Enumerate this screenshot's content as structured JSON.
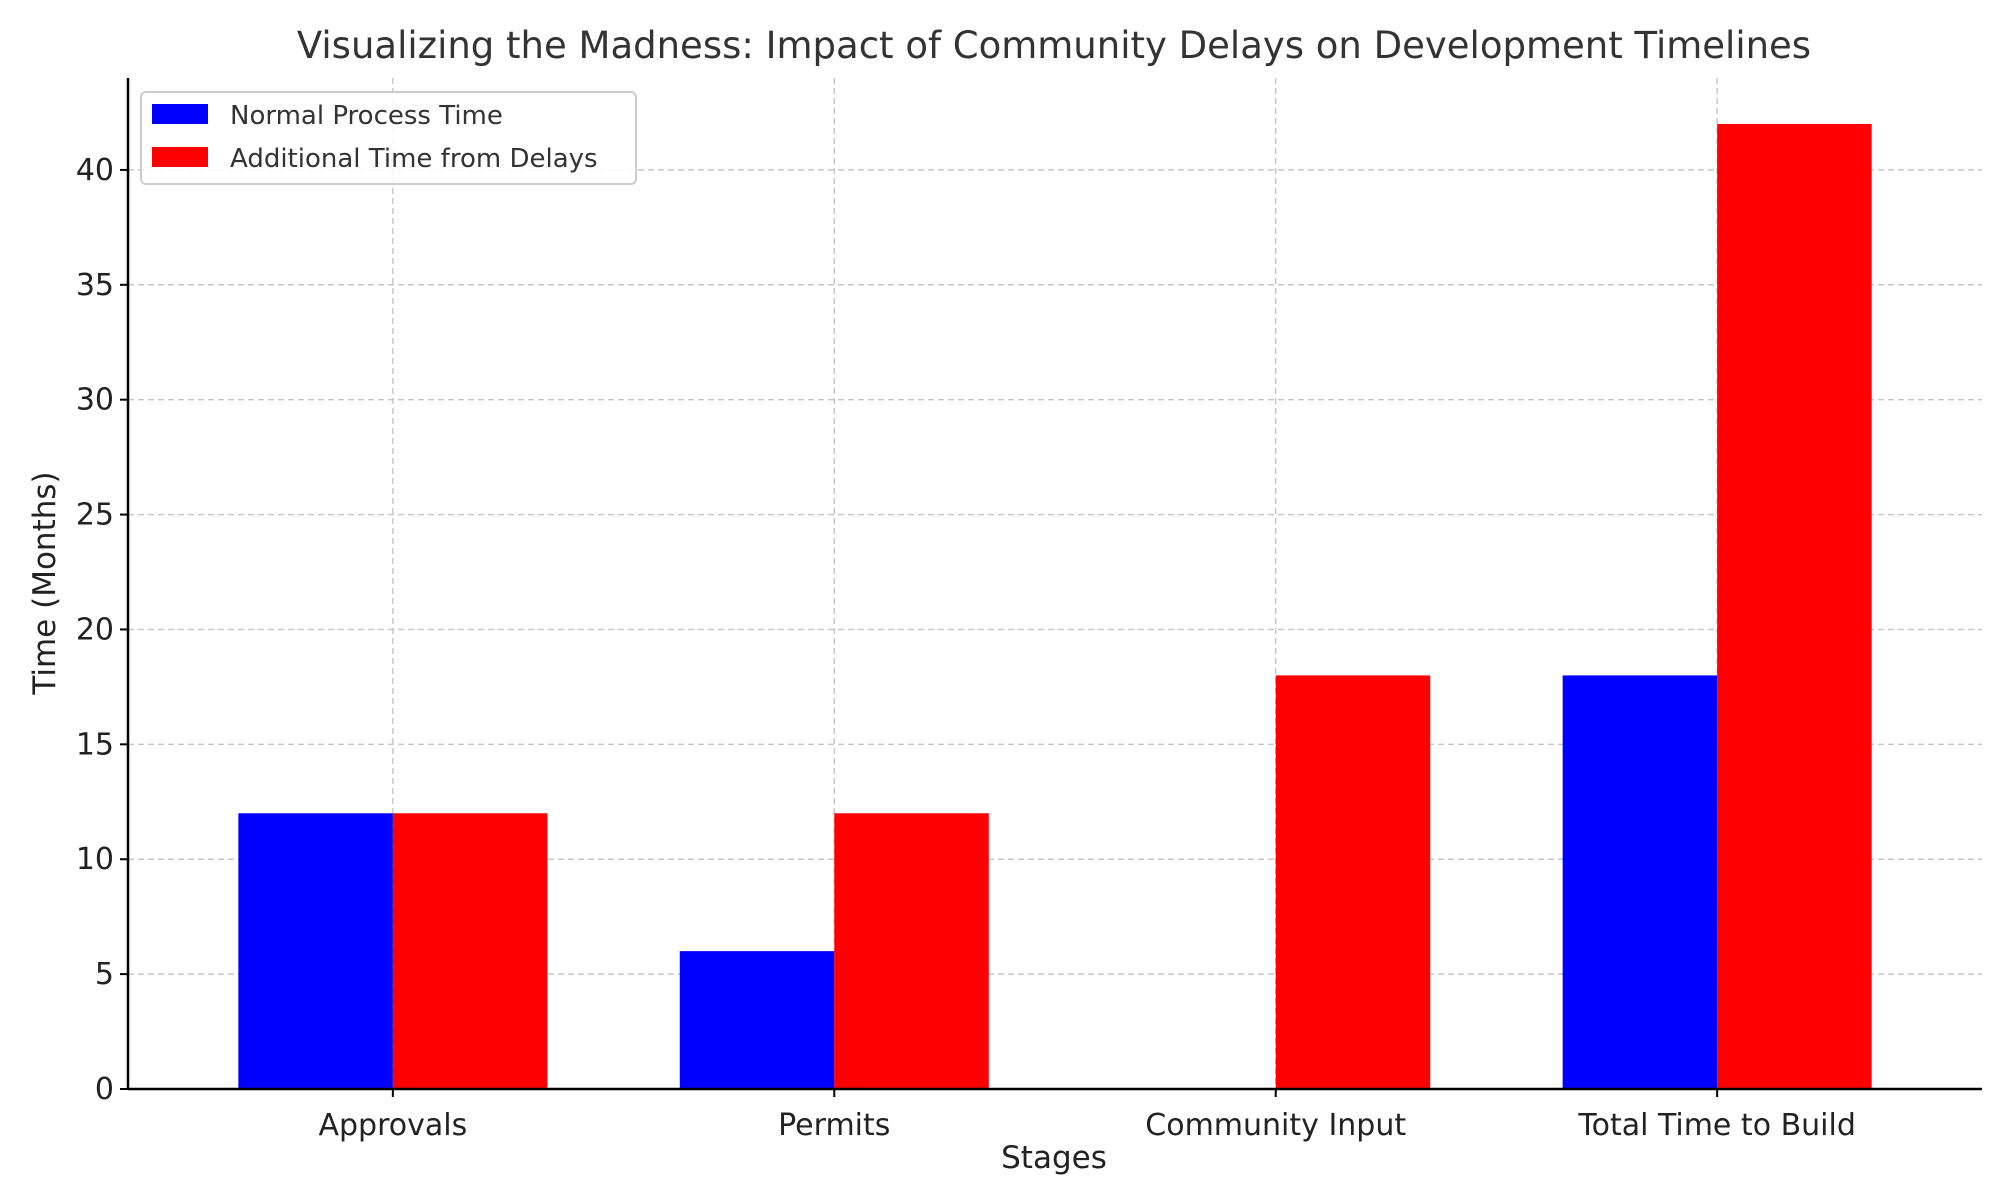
{
  "chart_data": {
    "type": "bar",
    "title": "Visualizing the Madness: Impact of Community Delays on Development Timelines",
    "xlabel": "Stages",
    "ylabel": "Time (Months)",
    "categories": [
      "Approvals",
      "Permits",
      "Community Input",
      "Total Time to Build"
    ],
    "series": [
      {
        "name": "Normal Process Time",
        "color": "#0000ff",
        "values": [
          12,
          6,
          0,
          18
        ]
      },
      {
        "name": "Additional Time from Delays",
        "color": "#ff0000",
        "values": [
          12,
          12,
          18,
          42
        ]
      }
    ],
    "ylim": [
      0,
      44
    ],
    "yticks": [
      0,
      5,
      10,
      15,
      20,
      25,
      30,
      35,
      40
    ],
    "grid": true,
    "legend_position": "top-left"
  }
}
